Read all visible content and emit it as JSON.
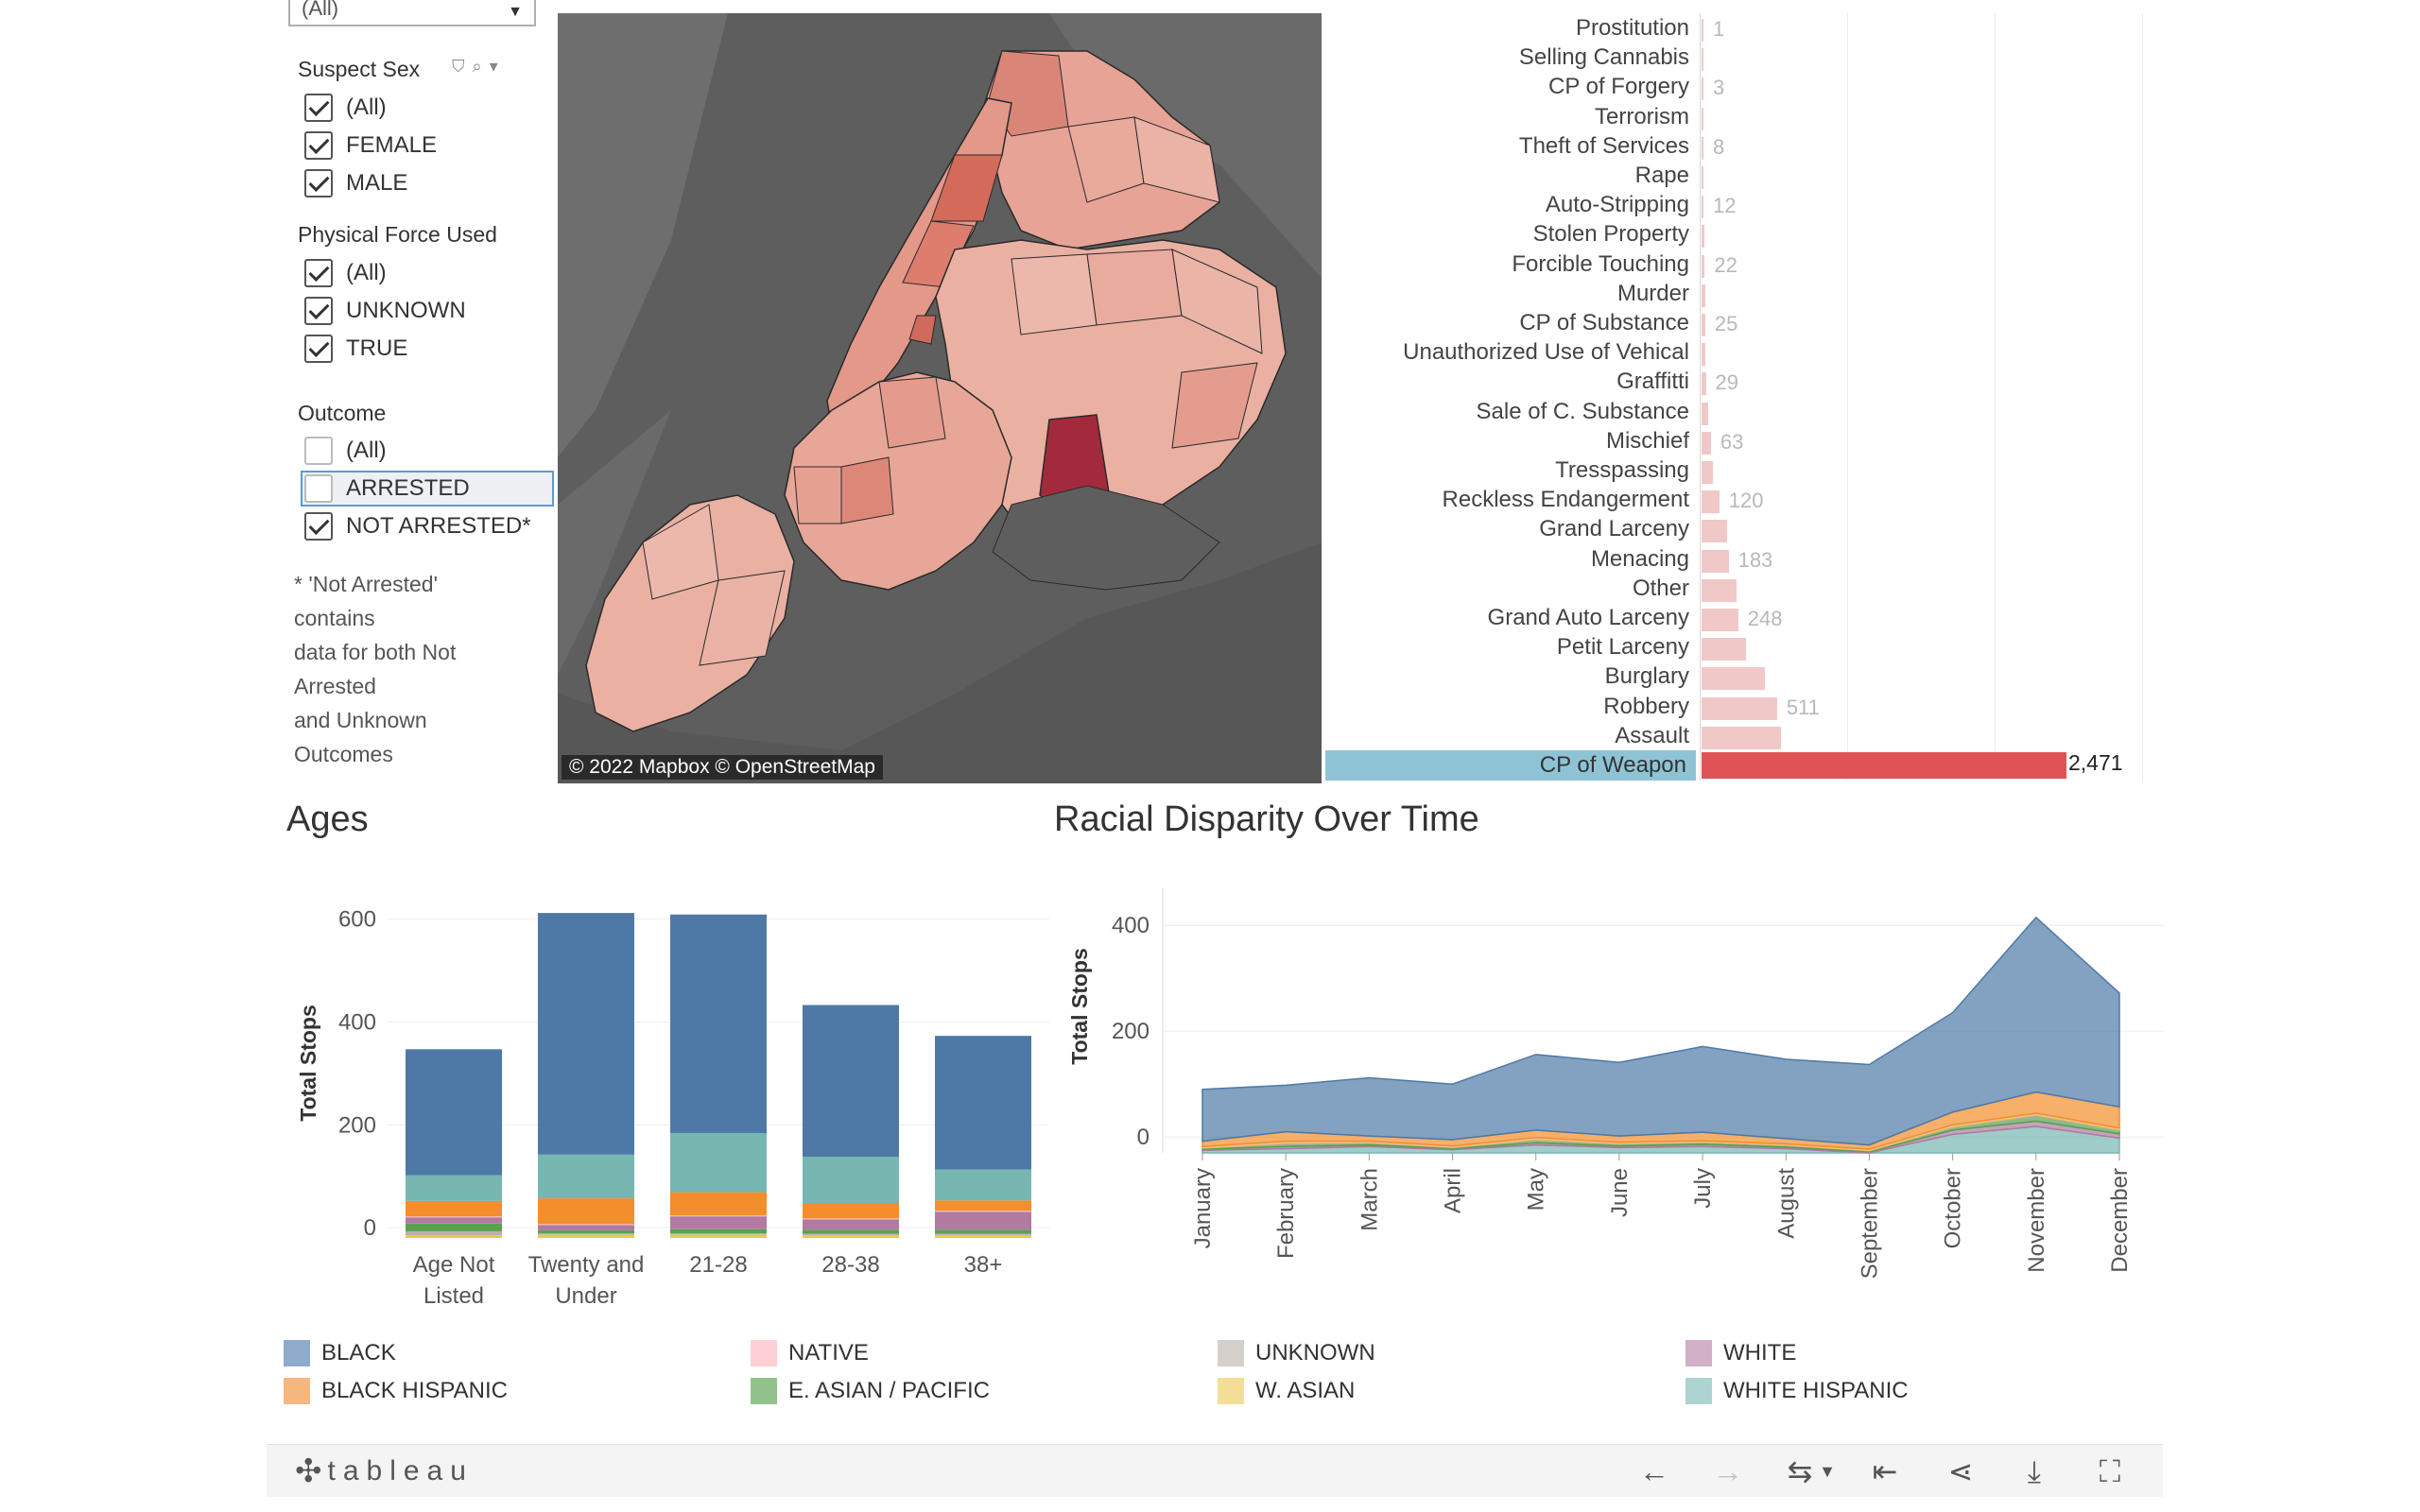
{
  "filters": {
    "top_dropdown": {
      "value": "(All)"
    },
    "suspect_sex": {
      "title": "Suspect Sex",
      "options": [
        "(All)",
        "FEMALE",
        "MALE"
      ]
    },
    "physical_force": {
      "title": "Physical Force Used",
      "options": [
        "(All)",
        "UNKNOWN",
        "TRUE"
      ]
    },
    "outcome": {
      "title": "Outcome",
      "options": [
        "(All)",
        "ARRESTED",
        "NOT ARRESTED*"
      ]
    },
    "note_lines": [
      "* 'Not Arrested'",
      "contains",
      "data for both Not",
      "Arrested",
      "and Unknown",
      "Outcomes"
    ]
  },
  "map": {
    "credit": "© 2022 Mapbox  © OpenStreetMap"
  },
  "crimes": {
    "rows": [
      {
        "label": "Prostitution",
        "value": 1,
        "value_label": "1"
      },
      {
        "label": "Selling Cannabis",
        "value": 2,
        "value_label": ""
      },
      {
        "label": "CP of Forgery",
        "value": 3,
        "value_label": "3"
      },
      {
        "label": "Terrorism",
        "value": 5,
        "value_label": ""
      },
      {
        "label": "Theft of Services",
        "value": 8,
        "value_label": "8"
      },
      {
        "label": "Rape",
        "value": 10,
        "value_label": ""
      },
      {
        "label": "Auto-Stripping",
        "value": 12,
        "value_label": "12"
      },
      {
        "label": "Stolen Property",
        "value": 18,
        "value_label": ""
      },
      {
        "label": "Forcible Touching",
        "value": 22,
        "value_label": "22"
      },
      {
        "label": "Murder",
        "value": 23,
        "value_label": ""
      },
      {
        "label": "CP of Substance",
        "value": 25,
        "value_label": "25"
      },
      {
        "label": "Unauthorized Use of Vehical",
        "value": 27,
        "value_label": ""
      },
      {
        "label": "Graffitti",
        "value": 29,
        "value_label": "29"
      },
      {
        "label": "Sale of C. Substance",
        "value": 45,
        "value_label": ""
      },
      {
        "label": "Mischief",
        "value": 63,
        "value_label": "63"
      },
      {
        "label": "Tresspassing",
        "value": 75,
        "value_label": ""
      },
      {
        "label": "Reckless Endangerment",
        "value": 120,
        "value_label": "120"
      },
      {
        "label": "Grand Larceny",
        "value": 170,
        "value_label": ""
      },
      {
        "label": "Menacing",
        "value": 183,
        "value_label": "183"
      },
      {
        "label": "Other",
        "value": 240,
        "value_label": ""
      },
      {
        "label": "Grand Auto Larceny",
        "value": 248,
        "value_label": "248"
      },
      {
        "label": "Petit Larceny",
        "value": 300,
        "value_label": ""
      },
      {
        "label": "Burglary",
        "value": 430,
        "value_label": ""
      },
      {
        "label": "Robbery",
        "value": 511,
        "value_label": "511"
      },
      {
        "label": "Assault",
        "value": 540,
        "value_label": ""
      }
    ],
    "selected": {
      "label": "CP of Weapon",
      "value": 2471,
      "value_label": "2,471"
    }
  },
  "ages_title": "Ages",
  "racial_title": "Racial Disparity Over Time",
  "colors": {
    "BLACK": "#4e79a7",
    "BLACK HISPANIC": "#f28e2b",
    "NATIVE": "#ffb6c1",
    "E. ASIAN / PACIFIC": "#59a14f",
    "UNKNOWN": "#bab0ac",
    "W. ASIAN": "#edc948",
    "WHITE": "#b07aa1",
    "WHITE HISPANIC": "#76b7b2",
    "legend_BLACK": "#8fabcc",
    "legend_BLACK HISPANIC": "#f6b781",
    "legend_NATIVE": "#ffcfd6",
    "legend_E. ASIAN / PACIFIC": "#93c38d",
    "legend_UNKNOWN": "#d6d0cd",
    "legend_W. ASIAN": "#f4de93",
    "legend_WHITE": "#d1b0c8",
    "legend_WHITE HISPANIC": "#add4d1"
  },
  "chart_data": [
    {
      "type": "bar",
      "stacked": true,
      "title": "Ages",
      "ylabel": "Total Stops",
      "ylim": [
        -20,
        660
      ],
      "yticks": [
        0,
        200,
        400,
        600
      ],
      "categories": [
        "Age Not Listed",
        "Twenty and Under",
        "21-28",
        "28-38",
        "38+"
      ],
      "category_lines": [
        [
          "Age Not",
          "Listed"
        ],
        [
          "Twenty and",
          "Under"
        ],
        [
          "21-28"
        ],
        [
          "28-38"
        ],
        [
          "38+"
        ]
      ],
      "series": [
        {
          "name": "W. ASIAN",
          "values": [
            5,
            6,
            6,
            5,
            5
          ]
        },
        {
          "name": "UNKNOWN",
          "values": [
            8,
            3,
            3,
            3,
            3
          ]
        },
        {
          "name": "E. ASIAN / PACIFIC",
          "values": [
            15,
            6,
            8,
            8,
            8
          ]
        },
        {
          "name": "WHITE",
          "values": [
            12,
            10,
            25,
            20,
            35
          ]
        },
        {
          "name": "NATIVE",
          "values": [
            2,
            2,
            2,
            2,
            2
          ]
        },
        {
          "name": "BLACK HISPANIC",
          "values": [
            30,
            50,
            45,
            30,
            20
          ]
        },
        {
          "name": "WHITE HISPANIC",
          "values": [
            50,
            85,
            115,
            90,
            60
          ]
        },
        {
          "name": "BLACK",
          "values": [
            245,
            470,
            425,
            295,
            260
          ]
        }
      ]
    },
    {
      "type": "area",
      "stacked": true,
      "title": "Racial Disparity Over Time",
      "ylabel": "Total Stops",
      "ylim": [
        -30,
        470
      ],
      "yticks": [
        0,
        200,
        400
      ],
      "x": [
        "January",
        "February",
        "March",
        "April",
        "May",
        "June",
        "July",
        "August",
        "September",
        "October",
        "November",
        "December"
      ],
      "series": [
        {
          "name": "WHITE HISPANIC",
          "values": [
            5,
            8,
            12,
            6,
            15,
            10,
            12,
            8,
            0,
            35,
            50,
            28
          ]
        },
        {
          "name": "WHITE",
          "values": [
            2,
            4,
            3,
            2,
            4,
            3,
            4,
            3,
            2,
            8,
            10,
            8
          ]
        },
        {
          "name": "E. ASIAN / PACIFIC",
          "values": [
            2,
            5,
            4,
            2,
            5,
            4,
            4,
            3,
            2,
            5,
            10,
            6
          ]
        },
        {
          "name": "UNKNOWN",
          "values": [
            1,
            2,
            1,
            1,
            2,
            1,
            1,
            1,
            1,
            2,
            2,
            2
          ]
        },
        {
          "name": "W. ASIAN",
          "values": [
            1,
            2,
            1,
            1,
            2,
            1,
            1,
            1,
            1,
            2,
            2,
            2
          ]
        },
        {
          "name": "NATIVE",
          "values": [
            1,
            1,
            1,
            1,
            1,
            1,
            1,
            1,
            1,
            1,
            1,
            1
          ]
        },
        {
          "name": "BLACK HISPANIC",
          "values": [
            10,
            18,
            10,
            12,
            14,
            12,
            16,
            10,
            8,
            24,
            40,
            40
          ]
        },
        {
          "name": "BLACK",
          "values": [
            98,
            88,
            110,
            105,
            143,
            139,
            162,
            150,
            152,
            188,
            330,
            215
          ]
        }
      ]
    }
  ],
  "legend": [
    "BLACK",
    "BLACK HISPANIC",
    "NATIVE",
    "E. ASIAN / PACIFIC",
    "UNKNOWN",
    "W. ASIAN",
    "WHITE",
    "WHITE HISPANIC"
  ],
  "toolbar": {
    "brand": "tableau"
  }
}
